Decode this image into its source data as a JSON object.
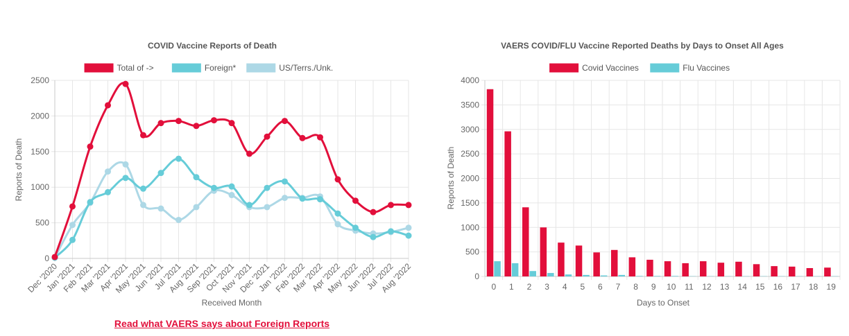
{
  "colors": {
    "covid_red": "#e20f3b",
    "foreign_teal": "#66ccd8",
    "us_lightblue": "#add8e6",
    "link_red": "#e20f3b"
  },
  "link": {
    "label": "Read what VAERS says about Foreign Reports"
  },
  "chart_data": [
    {
      "type": "line",
      "title": "COVID Vaccine Reports of Death",
      "xlabel": "Received Month",
      "ylabel": "Reports of Death",
      "ylim": [
        0,
        2500
      ],
      "yticks": [
        0,
        500,
        1000,
        1500,
        2000,
        2500
      ],
      "grid": true,
      "legend_placement": "top",
      "categories": [
        "Dec '2020",
        "Jan '2021",
        "Feb '2021",
        "Mar '2021",
        "Apr '2021",
        "May '2021",
        "Jun '2021",
        "Jul '2021",
        "Aug '2021",
        "Sep '2021",
        "Oct '2021",
        "Nov '2021",
        "Dec '2021",
        "Jan '2022",
        "Feb '2022",
        "Mar '2022",
        "Apr '2022",
        "May '2022",
        "Jun '2022",
        "Jul '2022",
        "Aug '2022"
      ],
      "series": [
        {
          "name": "Total of ->",
          "color": "#e20f3b",
          "values": [
            20,
            730,
            1570,
            2150,
            2450,
            1730,
            1900,
            1930,
            1860,
            1940,
            1900,
            1470,
            1710,
            1930,
            1690,
            1700,
            1110,
            810,
            650,
            750,
            750
          ]
        },
        {
          "name": "Foreign*",
          "color": "#66ccd8",
          "values": [
            10,
            260,
            790,
            930,
            1130,
            980,
            1200,
            1400,
            1140,
            990,
            1010,
            750,
            990,
            1080,
            840,
            830,
            630,
            430,
            300,
            380,
            320
          ]
        },
        {
          "name": "US/Terrs./Unk.",
          "color": "#add8e6",
          "values": [
            10,
            470,
            780,
            1220,
            1320,
            750,
            700,
            540,
            720,
            950,
            890,
            720,
            720,
            850,
            850,
            870,
            480,
            390,
            350,
            370,
            430
          ]
        }
      ]
    },
    {
      "type": "bar",
      "title": "VAERS COVID/FLU Vaccine Reported Deaths by Days to Onset All Ages",
      "xlabel": "Days to Onset",
      "ylabel": "Reports of Death",
      "ylim": [
        0,
        4000
      ],
      "yticks": [
        0,
        500,
        1000,
        1500,
        2000,
        2500,
        3000,
        3500,
        4000
      ],
      "grid": true,
      "legend_placement": "top",
      "categories": [
        "0",
        "1",
        "2",
        "3",
        "4",
        "5",
        "6",
        "7",
        "8",
        "9",
        "10",
        "11",
        "12",
        "13",
        "14",
        "15",
        "16",
        "17",
        "18",
        "19"
      ],
      "series": [
        {
          "name": "Covid Vaccines",
          "color": "#e20f3b",
          "values": [
            3820,
            2960,
            1410,
            1000,
            690,
            630,
            490,
            540,
            390,
            340,
            310,
            270,
            310,
            280,
            300,
            250,
            210,
            200,
            170,
            180
          ]
        },
        {
          "name": "Flu Vaccines",
          "color": "#66ccd8",
          "values": [
            310,
            270,
            110,
            70,
            40,
            30,
            20,
            30,
            10,
            10,
            10,
            5,
            5,
            5,
            5,
            5,
            5,
            5,
            5,
            5
          ]
        }
      ]
    }
  ]
}
